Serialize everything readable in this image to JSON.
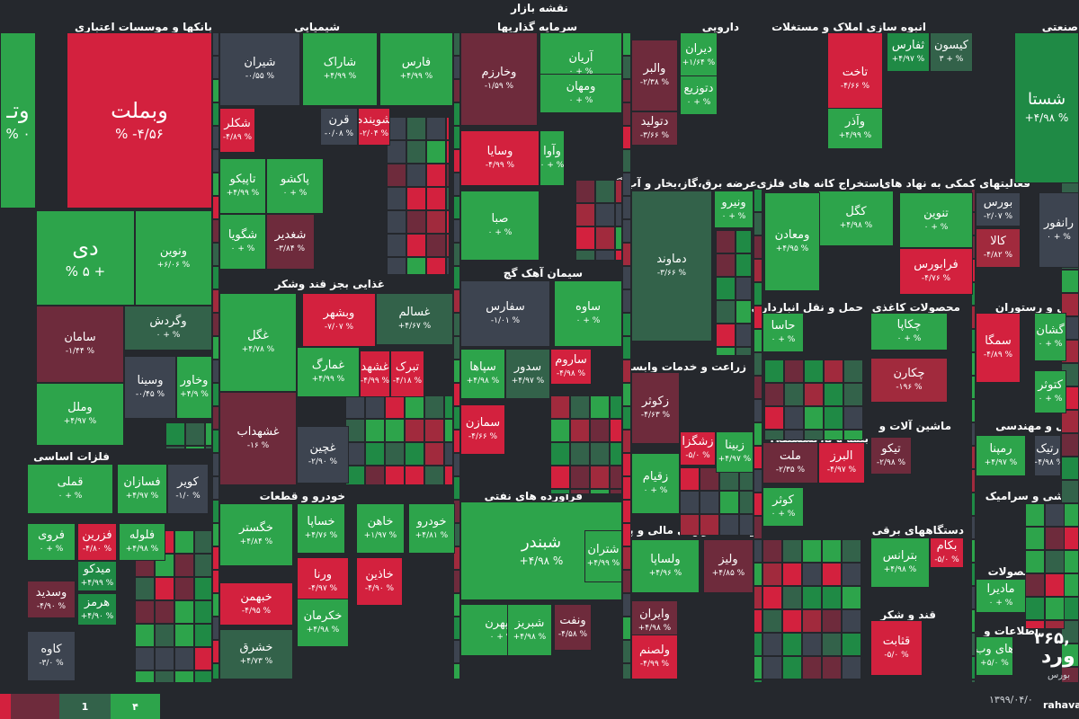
{
  "title": "نقشه بازار",
  "colors": {
    "g3": "#2da44b",
    "g2": "#1f8a45",
    "g1": "#33624a",
    "n": "#3d4450",
    "r1": "#6e2b3c",
    "r2": "#a12a3d",
    "r3": "#d3213e"
  },
  "legend": [
    "",
    "",
    "1",
    "۴"
  ],
  "brand": {
    "value": "۳۶۵,",
    "big": "ورد",
    "sub": "بورس",
    "date": "۱۳۹۹/۰۴/۰",
    "site": "rahava"
  },
  "sectors": [
    {
      "t": "بانکها و موسسات اعتباری"
    },
    {
      "t": "شیمیایی"
    },
    {
      "t": "سرمایه گذاریها"
    },
    {
      "t": "دارویی"
    },
    {
      "t": "انبوه سازی املاک و مستغلات"
    },
    {
      "t": "صنعتی"
    },
    {
      "t": "عرضه برق،گاز،بخار و آب گرم"
    },
    {
      "t": "استخراج کانه های فلزی"
    },
    {
      "t": "فعالیتهای کمکی به نهاد های"
    },
    {
      "t": "سیمان آهک گچ"
    },
    {
      "t": "غذایی بجز قند وشکر"
    },
    {
      "t": "حمل و نقل انبارداری و"
    },
    {
      "t": "محصولات کاغذی"
    },
    {
      "t": "هتل و رستوران"
    },
    {
      "t": "زراعت و خدمات وابسته"
    },
    {
      "t": "بیمه و بازنشستگی"
    },
    {
      "t": "ماشین آلات و"
    },
    {
      "t": "فنی و مهندسی"
    },
    {
      "t": "فلزات اساسی"
    },
    {
      "t": "خودرو و قطعات"
    },
    {
      "t": "فرآورده های نفتی"
    },
    {
      "t": "کاشی و سرامیک"
    },
    {
      "t": "دستگاههای برقی"
    },
    {
      "t": "واسطه گریهای مالی و پولی"
    },
    {
      "t": "محصولات"
    },
    {
      "t": "کانی غیر فلزی"
    },
    {
      "t": "قند و شکر"
    },
    {
      "t": "اطلاعات و"
    },
    {
      "t": "نفت"
    }
  ],
  "tiles": [
    {
      "s": "وتـ",
      "p": "% ۰",
      "c": "g3",
      "k": "big"
    },
    {
      "s": "وبملت",
      "p": "% -۴/۵۶",
      "c": "r3",
      "k": "big"
    },
    {
      "s": "دی",
      "p": "% ۵ +",
      "c": "g3",
      "k": "big"
    },
    {
      "s": "ونوین",
      "p": "+۶/۰۶ %",
      "c": "g3"
    },
    {
      "s": "سامان",
      "p": "-۱/۴۴ %",
      "c": "r1"
    },
    {
      "s": "وگردش",
      "p": "۰ + %",
      "c": "g1"
    },
    {
      "s": "وسینا",
      "p": "-۰/۴۵ %",
      "c": "n"
    },
    {
      "s": "وخاور",
      "p": "+۴/۹ %",
      "c": "g3"
    },
    {
      "s": "وملل",
      "p": "+۴/۹۷ %",
      "c": "g3"
    },
    {
      "s": "شیران",
      "p": "-۰/۵۵ %",
      "c": "n"
    },
    {
      "s": "شاراک",
      "p": "+۴/۹۹ %",
      "c": "g3"
    },
    {
      "s": "فارس",
      "p": "+۴/۹۹ %",
      "c": "g3"
    },
    {
      "s": "وخارزم",
      "p": "-۱/۵۹ %",
      "c": "r1"
    },
    {
      "s": "آریان",
      "p": "۰ + %",
      "c": "g3"
    },
    {
      "s": "ومهان",
      "p": "۰ + %",
      "c": "g3"
    },
    {
      "s": "دیران",
      "p": "+۱/۶۴ %",
      "c": "g3"
    },
    {
      "s": "والبر",
      "p": "-۲/۳۸ %",
      "c": "r1"
    },
    {
      "s": "دتوزیع",
      "p": "۰ + %",
      "c": "g3"
    },
    {
      "s": "دتولید",
      "p": "-۳/۶۶ %",
      "c": "r1"
    },
    {
      "s": "تاخت",
      "p": "-۴/۶۶ %",
      "c": "r3"
    },
    {
      "s": "ثفارس",
      "p": "+۴/۹۷ %",
      "c": "g2"
    },
    {
      "s": "کیسون",
      "p": "۳ + %",
      "c": "g1"
    },
    {
      "s": "وآذر",
      "p": "+۴/۹۹ %",
      "c": "g3"
    },
    {
      "s": "شستا",
      "p": "+۴/۹۸ %",
      "c": "g2",
      "k": "med"
    },
    {
      "s": "شکلر",
      "p": "-۴/۸۹ %",
      "c": "r3"
    },
    {
      "s": "قرن",
      "p": "-۰/۰۸ %",
      "c": "n"
    },
    {
      "s": "شوینده",
      "p": "-۲/۰۴ %",
      "c": "r3"
    },
    {
      "s": "تاپیکو",
      "p": "+۴/۹۹ %",
      "c": "g3"
    },
    {
      "s": "پاکشو",
      "p": "۰ + %",
      "c": "g3"
    },
    {
      "s": "شگویا",
      "p": "۰ + %",
      "c": "g3"
    },
    {
      "s": "شغدیر",
      "p": "-۳/۸۴ %",
      "c": "r1"
    },
    {
      "s": "وسایا",
      "p": "-۴/۹۹ %",
      "c": "r3"
    },
    {
      "s": "وآوا",
      "p": "۰ + %",
      "c": "g3"
    },
    {
      "s": "صبا",
      "p": "۰ + %",
      "c": "g3"
    },
    {
      "s": "دماوند",
      "p": "-۳/۶۶ %",
      "c": "g1"
    },
    {
      "s": "ونیرو",
      "p": "۰ + %",
      "c": "g3"
    },
    {
      "s": "کگل",
      "p": "+۴/۹۸ %",
      "c": "g3"
    },
    {
      "s": "ومعادن",
      "p": "+۴/۹۵ %",
      "c": "g3"
    },
    {
      "s": "تنوین",
      "p": "۰ + %",
      "c": "g3"
    },
    {
      "s": "بورس",
      "p": "-۲/۰۷ %",
      "c": "n"
    },
    {
      "s": "کالا",
      "p": "-۴/۸۲ %",
      "c": "r2"
    },
    {
      "s": "فرابورس",
      "p": "-۴/۷۶ %",
      "c": "r3"
    },
    {
      "s": "رانفور",
      "p": "۰ + %",
      "c": "n"
    },
    {
      "s": "غگل",
      "p": "+۴/۷۸ %",
      "c": "g3"
    },
    {
      "s": "غسالم",
      "p": "+۴/۶۷ %",
      "c": "g1"
    },
    {
      "s": "وبشهر",
      "p": "-۷/۰۷ %",
      "c": "r3"
    },
    {
      "s": "غمارگ",
      "p": "+۴/۹۹ %",
      "c": "g3"
    },
    {
      "s": "غشهد",
      "p": "-۴/۹۹ %",
      "c": "r3"
    },
    {
      "s": "تبرک",
      "p": "-۴/۱۸ %",
      "c": "r3"
    },
    {
      "s": "غشهداب",
      "p": "-۱۶ %",
      "c": "r1"
    },
    {
      "s": "غچین",
      "p": "-۲/۹۰ %",
      "c": "n"
    },
    {
      "s": "سفارس",
      "p": "-۱/۰۱ %",
      "c": "n"
    },
    {
      "s": "ساوه",
      "p": "۰ + %",
      "c": "g3"
    },
    {
      "s": "سپاها",
      "p": "+۴/۹۸ %",
      "c": "g3"
    },
    {
      "s": "سدور",
      "p": "+۴/۹۷ %",
      "c": "g1"
    },
    {
      "s": "ساروم",
      "p": "-۴/۹۸ %",
      "c": "r3"
    },
    {
      "s": "سمازن",
      "p": "-۴/۶۶ %",
      "c": "r3"
    },
    {
      "s": "حاسا",
      "p": "۰ + %",
      "c": "g3"
    },
    {
      "s": "چکاپا",
      "p": "۰ + %",
      "c": "g3"
    },
    {
      "s": "چکارن",
      "p": "-۱۹۶ %",
      "c": "r2"
    },
    {
      "s": "سمگا",
      "p": "-۴/۸۹ %",
      "c": "r3"
    },
    {
      "s": "گشان",
      "p": "۰ + %",
      "c": "g3"
    },
    {
      "s": "کتوثر",
      "p": "۰ + %",
      "c": "g3"
    },
    {
      "s": "زکوثر",
      "p": "-۴/۶۳ %",
      "c": "r1"
    },
    {
      "s": "زشگزا",
      "p": "-۵/۰ %",
      "c": "r3"
    },
    {
      "s": "زبینا",
      "p": "+۴/۹۷ %",
      "c": "g3"
    },
    {
      "s": "زقیام",
      "p": "۰ + %",
      "c": "g3"
    },
    {
      "s": "ملت",
      "p": "-۲/۳۵ %",
      "c": "r1"
    },
    {
      "s": "البرز",
      "p": "-۴/۹۷ %",
      "c": "r3"
    },
    {
      "s": "کوثر",
      "p": "۰ + %",
      "c": "g3"
    },
    {
      "s": "تیکو",
      "p": "-۲/۹۸ %",
      "c": "r1"
    },
    {
      "s": "رمپنا",
      "p": "+۴/۹۷ %",
      "c": "g3"
    },
    {
      "s": "رتیک",
      "p": "+۴/۹۸ %",
      "c": "n"
    },
    {
      "s": "قملی",
      "p": "۰ + %",
      "c": "g3"
    },
    {
      "s": "فسازان",
      "p": "+۴/۹۷ %",
      "c": "g3"
    },
    {
      "s": "کویر",
      "p": "-۱/۰ %",
      "c": "n"
    },
    {
      "s": "فروی",
      "p": "۰ + %",
      "c": "g3"
    },
    {
      "s": "فزرین",
      "p": "-۴/۸۰ %",
      "c": "r3"
    },
    {
      "s": "فلوله",
      "p": "+۴/۹۸ %",
      "c": "g3"
    },
    {
      "s": "میدکو",
      "p": "+۴/۹۹ %",
      "c": "g2"
    },
    {
      "s": "وسدید",
      "p": "-۴/۹۰ %",
      "c": "r1"
    },
    {
      "s": "هرمز",
      "p": "+۴/۹۰ %",
      "c": "g2"
    },
    {
      "s": "کاوه",
      "p": "-۳/۰ %",
      "c": "n"
    },
    {
      "s": "خگستر",
      "p": "+۴/۸۴ %",
      "c": "g3"
    },
    {
      "s": "خساپا",
      "p": "+۴/۷۶ %",
      "c": "g3"
    },
    {
      "s": "خاهن",
      "p": "+۱/۹۷ %",
      "c": "g3"
    },
    {
      "s": "خودرو",
      "p": "+۴/۸۱ %",
      "c": "g3"
    },
    {
      "s": "ورنا",
      "p": "-۴/۹۷ %",
      "c": "r3"
    },
    {
      "s": "خاذین",
      "p": "-۴/۹۰ %",
      "c": "r3"
    },
    {
      "s": "خبهمن",
      "p": "-۴/۹۵ %",
      "c": "r3"
    },
    {
      "s": "خکرمان",
      "p": "+۴/۹۸ %",
      "c": "g3"
    },
    {
      "s": "خشرق",
      "p": "+۴/۷۳ %",
      "c": "g1"
    },
    {
      "s": "شبندر",
      "p": "+۴/۹۸ %",
      "c": "g3",
      "k": "med"
    },
    {
      "s": "شتران",
      "p": "+۴/۹۹ %",
      "c": "g3"
    },
    {
      "s": "ونفت",
      "p": "-۴/۵۸ %",
      "c": "r1"
    },
    {
      "s": "شپهرن",
      "p": "۰ + %",
      "c": "g3"
    },
    {
      "s": "شبریز",
      "p": "+۴/۹۸ %",
      "c": "g3"
    },
    {
      "s": "ولساپا",
      "p": "+۴/۹۶ %",
      "c": "g3"
    },
    {
      "s": "ولیز",
      "p": "+۴/۸۵ %",
      "c": "r1"
    },
    {
      "s": "وایران",
      "p": "+۴/۹۸ %",
      "c": "r1"
    },
    {
      "s": "ولصنم",
      "p": "-۴/۹۹ %",
      "c": "r3"
    },
    {
      "s": "بکام",
      "p": "-۵/۰ %",
      "c": "r3"
    },
    {
      "s": "بترانس",
      "p": "+۴/۹۸ %",
      "c": "g3"
    },
    {
      "s": "مادیرا",
      "p": "۰ + %",
      "c": "g3"
    },
    {
      "s": "قثابت",
      "p": "-۵/۰ %",
      "c": "r3"
    },
    {
      "s": "های وب",
      "p": "+۵/۰ %",
      "c": "g3"
    }
  ]
}
